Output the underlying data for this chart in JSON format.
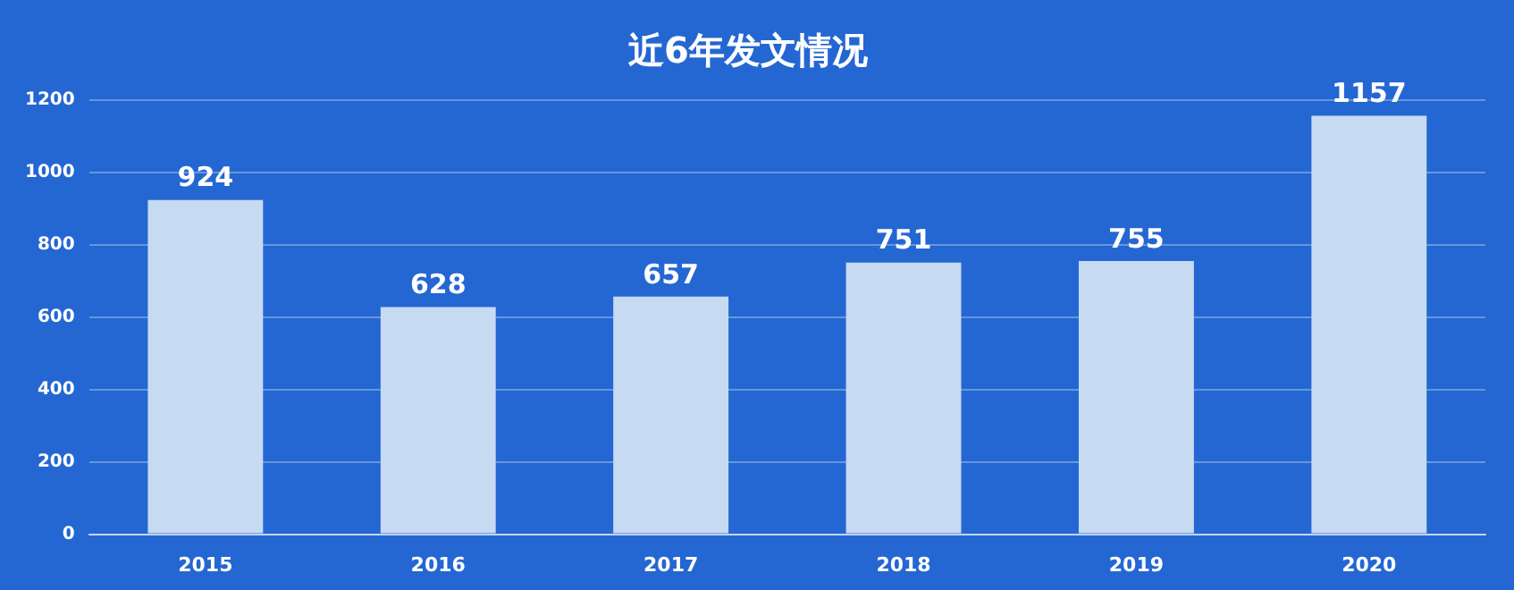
{
  "chart_data": {
    "type": "bar",
    "title": "近6年发文情况",
    "categories": [
      "2015",
      "2016",
      "2017",
      "2018",
      "2019",
      "2020"
    ],
    "values": [
      924,
      628,
      657,
      751,
      755,
      1157
    ],
    "color": "#c6daf2",
    "ylim": [
      0,
      1200
    ],
    "yticks": [
      0,
      200,
      400,
      600,
      800,
      1000,
      1200
    ],
    "grid": "y",
    "data_labels": true,
    "legend": false
  }
}
